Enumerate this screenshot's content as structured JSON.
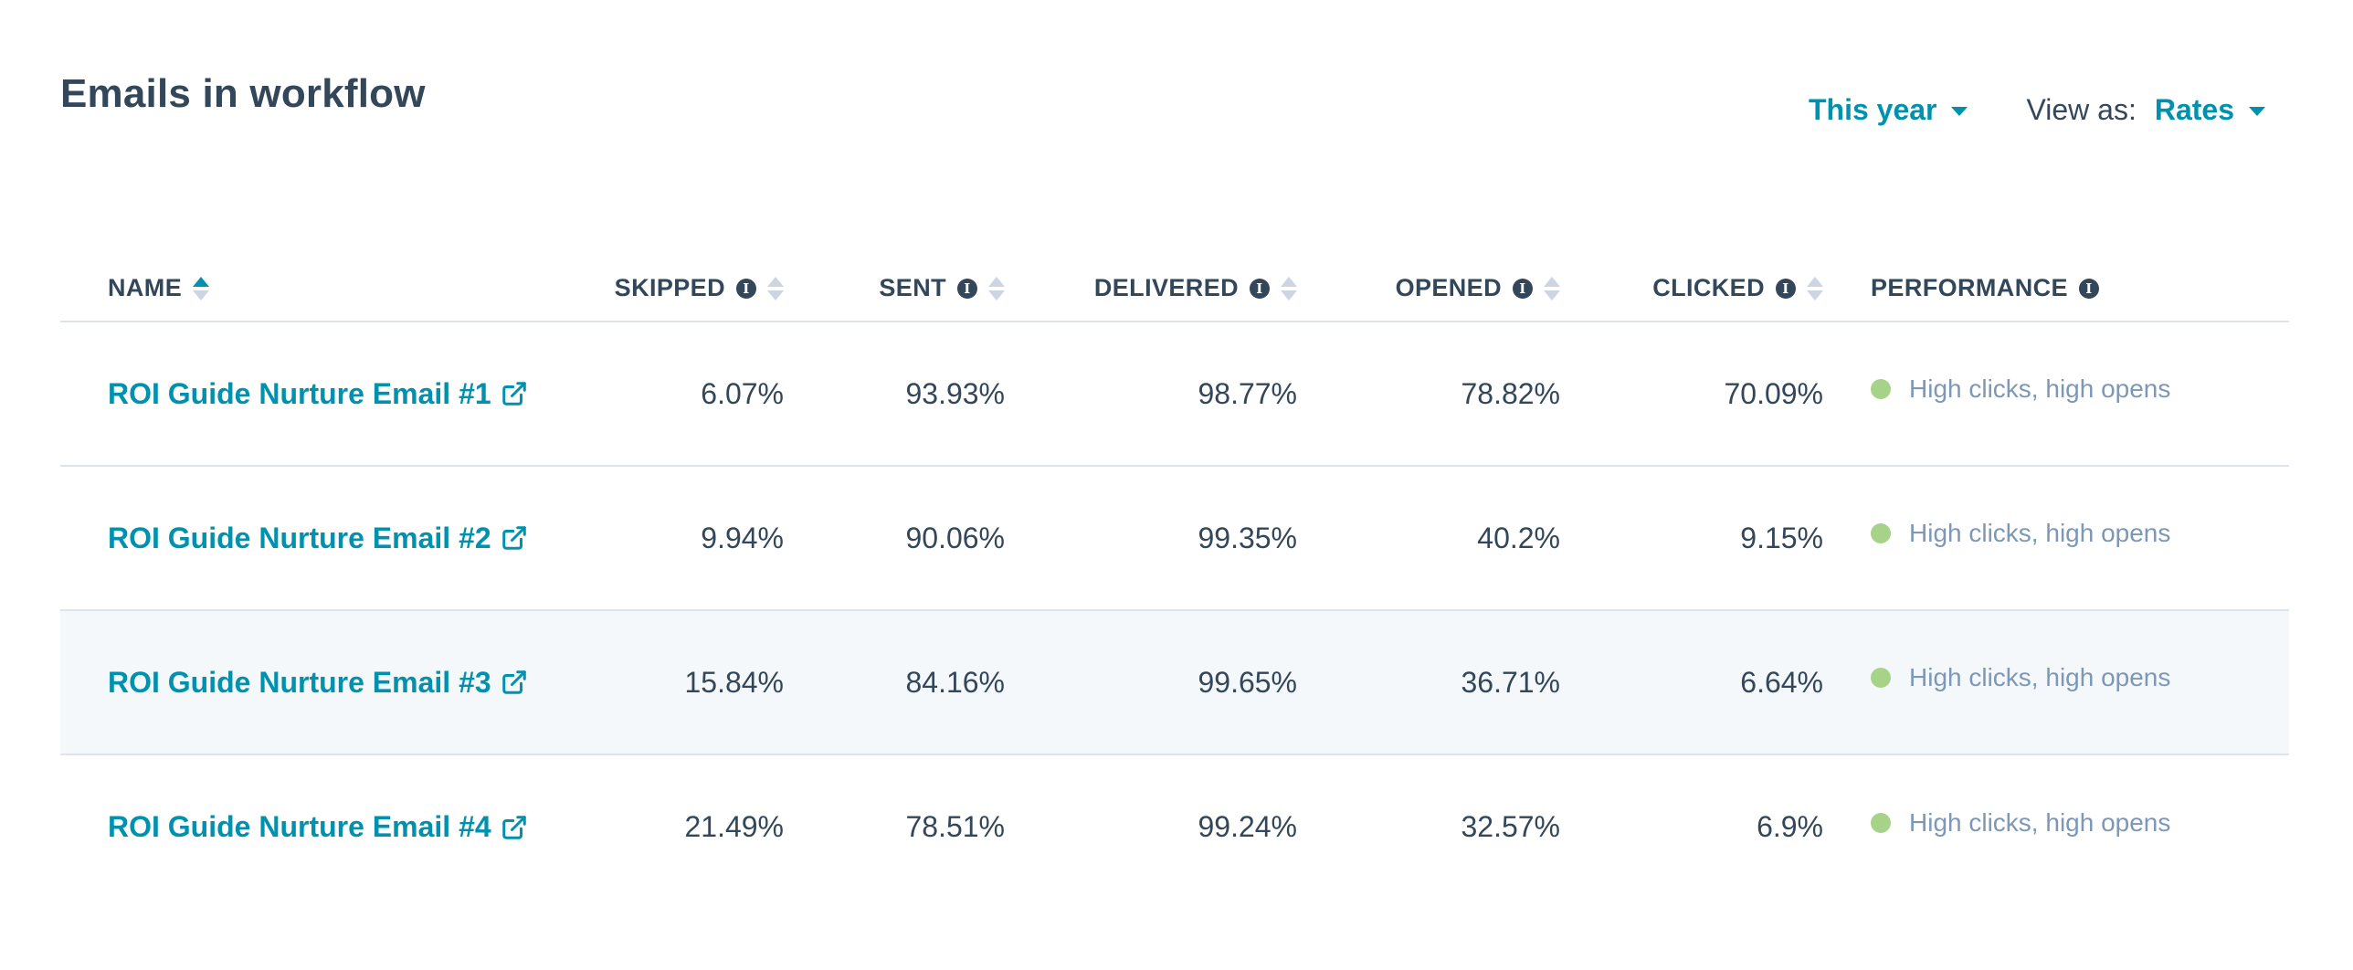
{
  "header": {
    "title": "Emails in workflow",
    "date_range": "This year",
    "view_as_label": "View as:",
    "view_as_value": "Rates"
  },
  "table": {
    "columns": [
      {
        "label": "NAME"
      },
      {
        "label": "SKIPPED"
      },
      {
        "label": "SENT"
      },
      {
        "label": "DELIVERED"
      },
      {
        "label": "OPENED"
      },
      {
        "label": "CLICKED"
      },
      {
        "label": "PERFORMANCE"
      }
    ],
    "rows": [
      {
        "name": "ROI Guide Nurture Email #1",
        "skipped": "6.07%",
        "sent": "93.93%",
        "delivered": "98.77%",
        "opened": "78.82%",
        "clicked": "70.09%",
        "performance": "High clicks, high opens"
      },
      {
        "name": "ROI Guide Nurture Email #2",
        "skipped": "9.94%",
        "sent": "90.06%",
        "delivered": "99.35%",
        "opened": "40.2%",
        "clicked": "9.15%",
        "performance": "High clicks, high opens"
      },
      {
        "name": "ROI Guide Nurture Email #3",
        "skipped": "15.84%",
        "sent": "84.16%",
        "delivered": "99.65%",
        "opened": "36.71%",
        "clicked": "6.64%",
        "performance": "High clicks, high opens"
      },
      {
        "name": "ROI Guide Nurture Email #4",
        "skipped": "21.49%",
        "sent": "78.51%",
        "delivered": "99.24%",
        "opened": "32.57%",
        "clicked": "6.9%",
        "performance": "High clicks, high opens"
      }
    ]
  },
  "icons": {
    "info": "info-icon",
    "sort": "sort-icon",
    "external_link": "external-link-icon",
    "caret": "caret-down-icon",
    "status_dot": "status-dot-icon"
  },
  "colors": {
    "link": "#0091ae",
    "text": "#33475b",
    "muted": "#7c98b6",
    "performance_good": "#a6d388",
    "row_hover": "#f5f8fa"
  }
}
